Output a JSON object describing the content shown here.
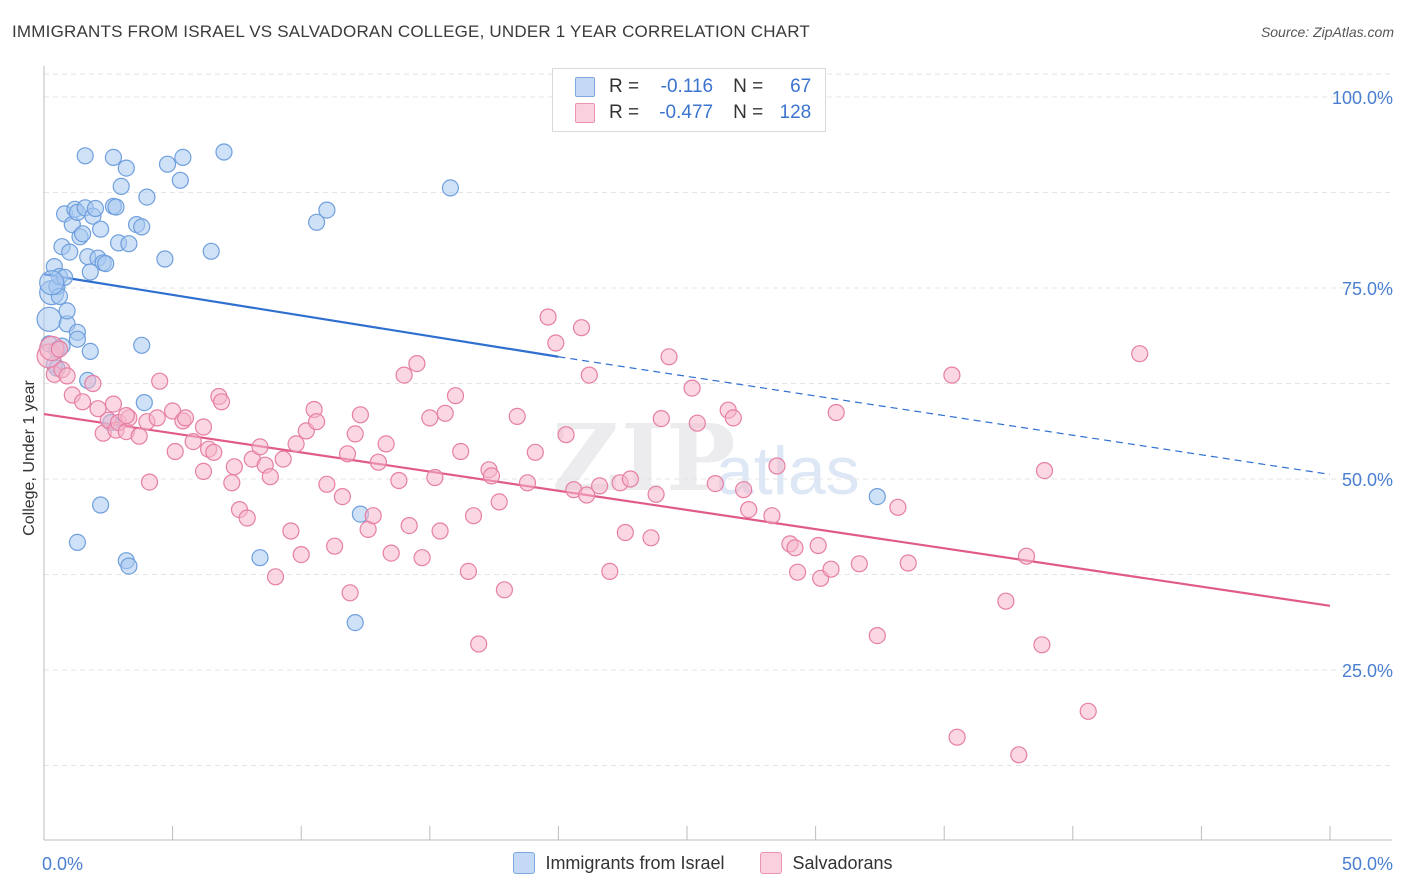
{
  "title": "IMMIGRANTS FROM ISRAEL VS SALVADORAN COLLEGE, UNDER 1 YEAR CORRELATION CHART",
  "source": "Source: ZipAtlas.com",
  "watermark": {
    "zip": "ZIP",
    "atlas": "atlas"
  },
  "legend": {
    "r_label": "R =",
    "n_label": "N =",
    "rows": [
      {
        "r": "-0.116",
        "n": "67",
        "color": "#a8c8f0"
      },
      {
        "r": "-0.477",
        "n": "128",
        "color": "#f6b6ca"
      }
    ]
  },
  "chart_data": {
    "type": "scatter",
    "xlabel": "",
    "ylabel": "College, Under 1 year",
    "xlim": [
      0,
      50
    ],
    "ylim": [
      5,
      103
    ],
    "x_tick_labels": [
      "0.0%",
      "50.0%"
    ],
    "y_ticks": [
      25,
      50,
      75,
      100
    ],
    "y_tick_labels": [
      "25.0%",
      "50.0%",
      "75.0%",
      "100.0%"
    ],
    "grid": true,
    "legend_position": "top-center",
    "series": [
      {
        "name": "Immigrants from Israel",
        "color": "#6f9fdd",
        "fill": "#a8c8f0",
        "trend": {
          "x0": 0,
          "y0": 76.8,
          "x1": 20,
          "y1": 66.0,
          "dash_to_x": 50,
          "dash_to_y": 50.6,
          "color": "#2f6fd0"
        },
        "points": [
          [
            0.2,
            70.9
          ],
          [
            0.2,
            67.7
          ],
          [
            0.3,
            74.4
          ],
          [
            0.4,
            77.8
          ],
          [
            0.5,
            75.2
          ],
          [
            0.5,
            66.9
          ],
          [
            0.6,
            73.9
          ],
          [
            0.6,
            76.5
          ],
          [
            0.7,
            80.4
          ],
          [
            0.8,
            84.7
          ],
          [
            0.8,
            76.4
          ],
          [
            0.9,
            70.3
          ],
          [
            1.0,
            79.7
          ],
          [
            1.1,
            83.3
          ],
          [
            1.2,
            85.3
          ],
          [
            1.3,
            84.9
          ],
          [
            1.3,
            69.2
          ],
          [
            1.3,
            68.3
          ],
          [
            1.4,
            81.7
          ],
          [
            1.6,
            92.3
          ],
          [
            1.6,
            85.5
          ],
          [
            1.7,
            79.1
          ],
          [
            1.8,
            77.1
          ],
          [
            1.8,
            66.7
          ],
          [
            1.9,
            84.4
          ],
          [
            2.0,
            85.4
          ],
          [
            2.1,
            78.9
          ],
          [
            2.2,
            82.7
          ],
          [
            2.3,
            78.3
          ],
          [
            2.4,
            78.2
          ],
          [
            2.7,
            92.1
          ],
          [
            2.7,
            85.7
          ],
          [
            2.8,
            85.6
          ],
          [
            2.9,
            80.9
          ],
          [
            3.0,
            88.3
          ],
          [
            3.2,
            90.7
          ],
          [
            3.3,
            80.8
          ],
          [
            3.6,
            83.3
          ],
          [
            3.8,
            83.0
          ],
          [
            4.0,
            86.9
          ],
          [
            4.7,
            78.8
          ],
          [
            4.8,
            91.2
          ],
          [
            5.3,
            89.1
          ],
          [
            5.4,
            92.1
          ],
          [
            6.5,
            79.8
          ],
          [
            7.0,
            92.8
          ],
          [
            10.6,
            83.6
          ],
          [
            11.0,
            85.2
          ],
          [
            15.8,
            88.1
          ],
          [
            0.3,
            75.7
          ],
          [
            0.9,
            72.0
          ],
          [
            1.7,
            62.9
          ],
          [
            3.8,
            67.5
          ],
          [
            3.9,
            60.0
          ],
          [
            2.6,
            57.4
          ],
          [
            2.2,
            46.6
          ],
          [
            1.3,
            41.7
          ],
          [
            3.2,
            39.3
          ],
          [
            3.3,
            38.6
          ],
          [
            8.4,
            39.7
          ],
          [
            12.3,
            45.4
          ],
          [
            12.1,
            31.2
          ],
          [
            32.4,
            47.7
          ],
          [
            0.4,
            65.0
          ],
          [
            0.7,
            67.4
          ],
          [
            1.5,
            82.1
          ],
          [
            0.5,
            64.5
          ]
        ]
      },
      {
        "name": "Salvadorans",
        "color": "#e67fa3",
        "fill": "#f6b6ca",
        "trend": {
          "x0": 0,
          "y0": 58.5,
          "x1": 50,
          "y1": 33.4,
          "color": "#e05a8a"
        },
        "points": [
          [
            0.2,
            66.1
          ],
          [
            0.3,
            67.1
          ],
          [
            0.4,
            63.7
          ],
          [
            0.6,
            67.0
          ],
          [
            0.7,
            64.3
          ],
          [
            0.9,
            63.5
          ],
          [
            1.1,
            61.0
          ],
          [
            1.5,
            60.1
          ],
          [
            1.9,
            62.5
          ],
          [
            2.1,
            59.2
          ],
          [
            2.3,
            56.0
          ],
          [
            2.5,
            57.7
          ],
          [
            2.7,
            59.8
          ],
          [
            2.8,
            56.4
          ],
          [
            2.9,
            57.4
          ],
          [
            3.2,
            56.2
          ],
          [
            3.3,
            58.0
          ],
          [
            3.7,
            55.6
          ],
          [
            4.0,
            57.5
          ],
          [
            4.1,
            49.6
          ],
          [
            4.4,
            58.0
          ],
          [
            4.5,
            62.8
          ],
          [
            5.0,
            58.9
          ],
          [
            5.1,
            53.6
          ],
          [
            5.4,
            57.6
          ],
          [
            5.5,
            58.0
          ],
          [
            5.8,
            54.9
          ],
          [
            6.2,
            51.0
          ],
          [
            6.4,
            53.9
          ],
          [
            6.6,
            53.5
          ],
          [
            6.8,
            60.8
          ],
          [
            6.9,
            60.1
          ],
          [
            7.3,
            49.5
          ],
          [
            7.4,
            51.6
          ],
          [
            7.6,
            46.0
          ],
          [
            7.9,
            44.9
          ],
          [
            8.1,
            52.6
          ],
          [
            8.4,
            54.2
          ],
          [
            8.6,
            51.8
          ],
          [
            8.8,
            50.3
          ],
          [
            9.0,
            37.2
          ],
          [
            9.3,
            52.6
          ],
          [
            9.6,
            43.2
          ],
          [
            9.8,
            54.6
          ],
          [
            10.0,
            40.1
          ],
          [
            10.2,
            56.3
          ],
          [
            10.5,
            59.1
          ],
          [
            10.6,
            57.5
          ],
          [
            11.0,
            49.3
          ],
          [
            11.3,
            41.2
          ],
          [
            11.6,
            47.7
          ],
          [
            11.8,
            53.3
          ],
          [
            11.9,
            35.1
          ],
          [
            12.1,
            55.9
          ],
          [
            12.3,
            58.4
          ],
          [
            12.6,
            43.4
          ],
          [
            12.8,
            45.2
          ],
          [
            13.0,
            52.2
          ],
          [
            13.3,
            54.6
          ],
          [
            13.5,
            40.3
          ],
          [
            13.8,
            49.8
          ],
          [
            14.0,
            63.6
          ],
          [
            14.2,
            43.9
          ],
          [
            14.5,
            65.1
          ],
          [
            14.7,
            39.7
          ],
          [
            15.0,
            58.0
          ],
          [
            15.2,
            50.2
          ],
          [
            15.4,
            43.2
          ],
          [
            15.6,
            58.6
          ],
          [
            16.0,
            60.9
          ],
          [
            16.2,
            53.6
          ],
          [
            16.5,
            37.9
          ],
          [
            16.7,
            45.2
          ],
          [
            16.9,
            28.4
          ],
          [
            17.3,
            51.2
          ],
          [
            17.4,
            50.4
          ],
          [
            17.7,
            47.0
          ],
          [
            17.9,
            35.5
          ],
          [
            18.4,
            58.2
          ],
          [
            18.8,
            49.5
          ],
          [
            19.1,
            53.5
          ],
          [
            19.6,
            71.2
          ],
          [
            19.9,
            67.8
          ],
          [
            20.3,
            55.8
          ],
          [
            20.6,
            48.6
          ],
          [
            20.9,
            69.8
          ],
          [
            21.1,
            47.9
          ],
          [
            21.2,
            63.6
          ],
          [
            21.6,
            49.1
          ],
          [
            22.0,
            37.9
          ],
          [
            22.4,
            49.5
          ],
          [
            22.6,
            43.0
          ],
          [
            22.8,
            50.0
          ],
          [
            23.6,
            42.3
          ],
          [
            23.8,
            48.0
          ],
          [
            24.0,
            57.9
          ],
          [
            24.3,
            66.0
          ],
          [
            25.2,
            61.9
          ],
          [
            25.4,
            57.3
          ],
          [
            26.1,
            49.4
          ],
          [
            26.6,
            59.0
          ],
          [
            26.8,
            58.0
          ],
          [
            27.2,
            48.6
          ],
          [
            27.4,
            46.0
          ],
          [
            28.3,
            45.2
          ],
          [
            28.5,
            51.7
          ],
          [
            29.0,
            41.5
          ],
          [
            29.2,
            41.0
          ],
          [
            29.3,
            37.8
          ],
          [
            30.1,
            41.3
          ],
          [
            30.2,
            37.0
          ],
          [
            30.6,
            38.2
          ],
          [
            30.8,
            58.7
          ],
          [
            31.7,
            38.9
          ],
          [
            32.4,
            29.5
          ],
          [
            33.2,
            46.3
          ],
          [
            33.6,
            39.0
          ],
          [
            35.3,
            63.6
          ],
          [
            35.5,
            16.2
          ],
          [
            37.4,
            34.0
          ],
          [
            37.9,
            13.9
          ],
          [
            38.2,
            39.9
          ],
          [
            38.8,
            28.3
          ],
          [
            38.9,
            51.1
          ],
          [
            40.6,
            19.6
          ],
          [
            42.6,
            66.4
          ],
          [
            3.2,
            58.3
          ],
          [
            6.2,
            56.8
          ]
        ]
      }
    ]
  }
}
